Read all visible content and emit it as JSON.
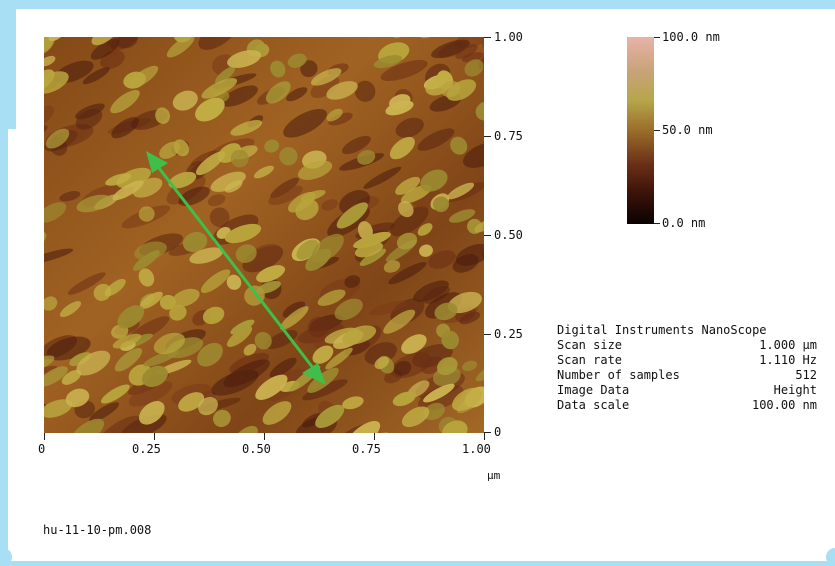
{
  "image": {
    "colors": {
      "frame_background": "#a9dff4",
      "panel_background": "#ffffff",
      "height_low": "#0a0202",
      "height_mid": "#9a6d2a",
      "height_high": "#e8b3a8",
      "arrow": "#3fbf4a"
    },
    "right_axis_labels": [
      "1.00",
      "0.75",
      "0.50",
      "0.25",
      "0"
    ],
    "bottom_axis_labels": [
      "0",
      "0.25",
      "0.50",
      "0.75",
      "1.00"
    ],
    "axis_unit": "µm",
    "colorbar_labels": [
      "100.0 nm",
      "50.0 nm",
      "0.0 nm"
    ],
    "info": [
      {
        "label": "Digital Instruments NanoScope",
        "value": ""
      },
      {
        "label": "Scan size",
        "value": "1.000 µm"
      },
      {
        "label": "Scan rate",
        "value": "1.110 Hz"
      },
      {
        "label": "Number of samples",
        "value": "512"
      },
      {
        "label": "Image Data",
        "value": "Height"
      },
      {
        "label": "Data scale",
        "value": "100.00 nm"
      }
    ],
    "filename": "hu-11-10-pm.008"
  }
}
